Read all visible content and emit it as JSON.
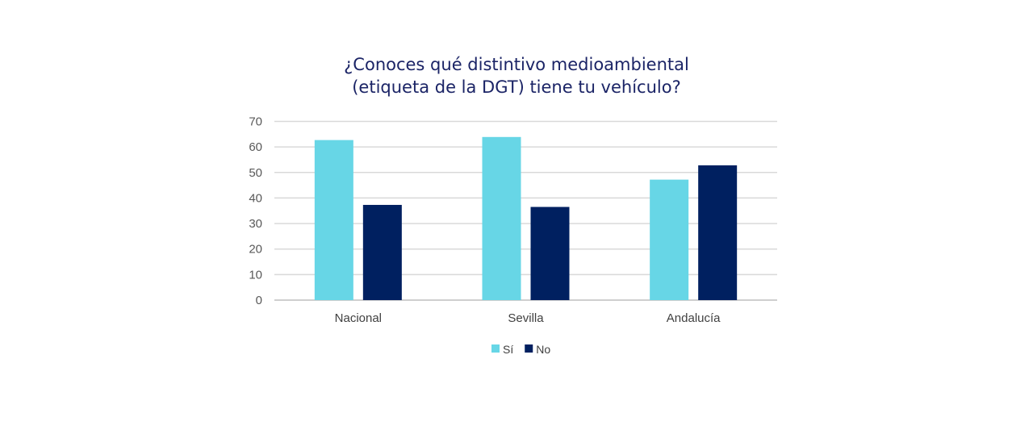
{
  "chart_data": {
    "type": "bar",
    "title_lines": [
      "¿Conoces qué distintivo medioambiental",
      "(etiqueta de la DGT) tiene tu vehículo?"
    ],
    "categories": [
      "Nacional",
      "Sevilla",
      "Andalucía"
    ],
    "series": [
      {
        "name": "Sí",
        "color": "#67d6e6",
        "values": [
          62.7,
          63.9,
          47.2
        ]
      },
      {
        "name": "No",
        "color": "#002060",
        "values": [
          37.3,
          36.5,
          52.8
        ]
      }
    ],
    "yticks": [
      "0",
      "10",
      "20",
      "30",
      "40",
      "50",
      "60",
      "70"
    ],
    "ylim": [
      0,
      70
    ],
    "grid": true,
    "legend": "bottom",
    "xlabel": "",
    "ylabel": ""
  }
}
